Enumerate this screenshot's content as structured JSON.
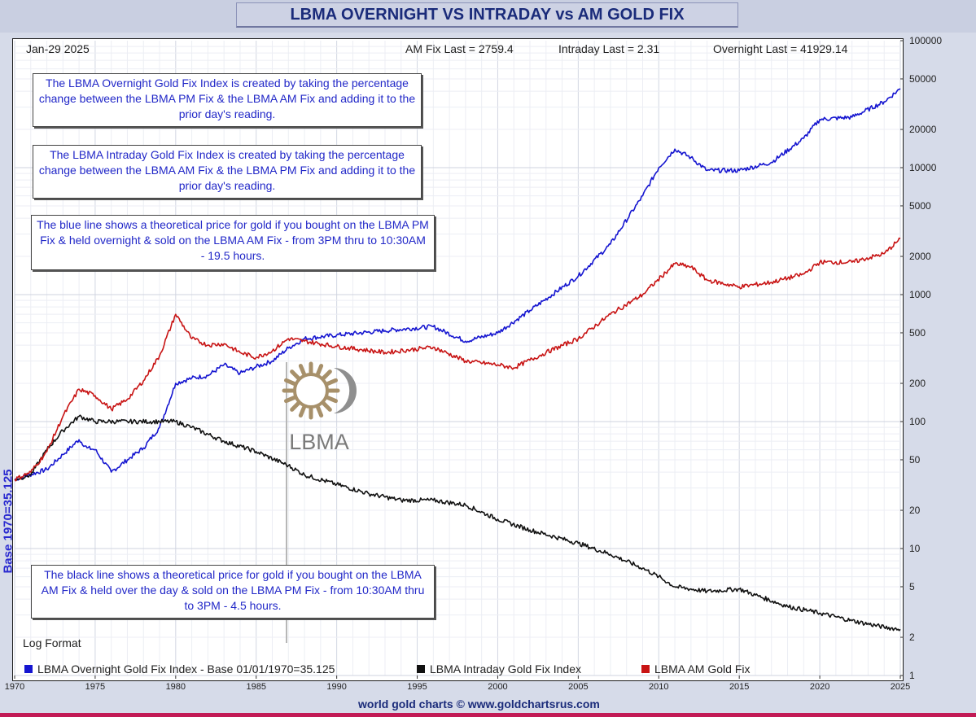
{
  "chart_data": {
    "type": "line",
    "title": "LBMA OVERNIGHT VS INTRADAY vs AM GOLD FIX",
    "date": "Jan-29  2025",
    "stats": {
      "am_fix_last": "AM Fix Last = 2759.4",
      "intraday_last": "Intraday Last = 2.31",
      "overnight_last": "Overnight Last = 41929.14"
    },
    "ylabel": "Base 1970=35.125",
    "y_scale": "log",
    "ylim": [
      1,
      100000
    ],
    "xlim": [
      1970,
      2025
    ],
    "x_ticks": [
      "1970",
      "1975",
      "1980",
      "1985",
      "1990",
      "1995",
      "2000",
      "2005",
      "2010",
      "2015",
      "2020",
      "2025"
    ],
    "y_ticks": [
      {
        "v": 100000,
        "label": "100000"
      },
      {
        "v": 50000,
        "label": "50000"
      },
      {
        "v": 20000,
        "label": "20000"
      },
      {
        "v": 10000,
        "label": "10000"
      },
      {
        "v": 5000,
        "label": "5000"
      },
      {
        "v": 2000,
        "label": "2000"
      },
      {
        "v": 1000,
        "label": "1000"
      },
      {
        "v": 500,
        "label": "500"
      },
      {
        "v": 200,
        "label": "200"
      },
      {
        "v": 100,
        "label": "100"
      },
      {
        "v": 50,
        "label": "50"
      },
      {
        "v": 20,
        "label": "20"
      },
      {
        "v": 10,
        "label": "10"
      },
      {
        "v": 5,
        "label": "5"
      },
      {
        "v": 2,
        "label": "2"
      },
      {
        "v": 1,
        "label": "1"
      }
    ],
    "series": [
      {
        "name": "LBMA Overnight Gold Fix Index - Base 01/01/1970=35.125",
        "color": "#1515d0",
        "points": [
          [
            1970,
            35
          ],
          [
            1972,
            42
          ],
          [
            1973,
            55
          ],
          [
            1974,
            72
          ],
          [
            1974.5,
            62
          ],
          [
            1975,
            60
          ],
          [
            1976,
            40
          ],
          [
            1977,
            50
          ],
          [
            1978,
            62
          ],
          [
            1979,
            90
          ],
          [
            1980,
            200
          ],
          [
            1981,
            220
          ],
          [
            1982,
            230
          ],
          [
            1983,
            280
          ],
          [
            1984,
            240
          ],
          [
            1985,
            270
          ],
          [
            1986,
            300
          ],
          [
            1987,
            380
          ],
          [
            1988,
            450
          ],
          [
            1990,
            480
          ],
          [
            1993,
            520
          ],
          [
            1996,
            560
          ],
          [
            1998,
            430
          ],
          [
            2000,
            500
          ],
          [
            2002,
            750
          ],
          [
            2005,
            1400
          ],
          [
            2007,
            2500
          ],
          [
            2009,
            6000
          ],
          [
            2010,
            10000
          ],
          [
            2011,
            14000
          ],
          [
            2012,
            12000
          ],
          [
            2013,
            9500
          ],
          [
            2015,
            9500
          ],
          [
            2017,
            11000
          ],
          [
            2019,
            17000
          ],
          [
            2020,
            24000
          ],
          [
            2022,
            25000
          ],
          [
            2024,
            33000
          ],
          [
            2025,
            41929
          ]
        ]
      },
      {
        "name": "LBMA Intraday Gold Fix Index",
        "color": "#111111",
        "points": [
          [
            1970,
            35
          ],
          [
            1971,
            38
          ],
          [
            1972,
            60
          ],
          [
            1973,
            85
          ],
          [
            1974,
            110
          ],
          [
            1975,
            100
          ],
          [
            1977,
            100
          ],
          [
            1979,
            100
          ],
          [
            1980,
            100
          ],
          [
            1981,
            90
          ],
          [
            1983,
            70
          ],
          [
            1985,
            58
          ],
          [
            1987,
            45
          ],
          [
            1988,
            38
          ],
          [
            1990,
            32
          ],
          [
            1992,
            27
          ],
          [
            1994,
            24
          ],
          [
            1996,
            24
          ],
          [
            1998,
            22
          ],
          [
            2000,
            17
          ],
          [
            2002,
            14
          ],
          [
            2005,
            11
          ],
          [
            2007,
            9
          ],
          [
            2009,
            7
          ],
          [
            2010,
            6
          ],
          [
            2011,
            5
          ],
          [
            2013,
            4.6
          ],
          [
            2015,
            4.8
          ],
          [
            2016,
            4.3
          ],
          [
            2018,
            3.5
          ],
          [
            2020,
            3.1
          ],
          [
            2022,
            2.7
          ],
          [
            2024,
            2.4
          ],
          [
            2025,
            2.31
          ]
        ]
      },
      {
        "name": "LBMA AM Gold Fix",
        "color": "#c81414",
        "points": [
          [
            1970,
            35
          ],
          [
            1971,
            40
          ],
          [
            1972,
            58
          ],
          [
            1973,
            110
          ],
          [
            1974,
            180
          ],
          [
            1975,
            160
          ],
          [
            1976,
            125
          ],
          [
            1977,
            150
          ],
          [
            1978,
            210
          ],
          [
            1979,
            330
          ],
          [
            1980,
            700
          ],
          [
            1981,
            450
          ],
          [
            1982,
            400
          ],
          [
            1983,
            410
          ],
          [
            1984,
            350
          ],
          [
            1985,
            320
          ],
          [
            1986,
            360
          ],
          [
            1987,
            450
          ],
          [
            1988,
            430
          ],
          [
            1990,
            390
          ],
          [
            1993,
            350
          ],
          [
            1996,
            385
          ],
          [
            1998,
            300
          ],
          [
            2000,
            280
          ],
          [
            2001,
            265
          ],
          [
            2003,
            350
          ],
          [
            2005,
            450
          ],
          [
            2007,
            700
          ],
          [
            2009,
            1000
          ],
          [
            2011,
            1750
          ],
          [
            2012,
            1650
          ],
          [
            2013,
            1300
          ],
          [
            2015,
            1150
          ],
          [
            2017,
            1250
          ],
          [
            2019,
            1450
          ],
          [
            2020,
            1800
          ],
          [
            2022,
            1800
          ],
          [
            2024,
            2100
          ],
          [
            2025,
            2759
          ]
        ]
      }
    ]
  },
  "notes": {
    "overnight_def": "The LBMA Overnight Gold Fix Index is created by taking the percentage change between the LBMA PM Fix & the LBMA AM Fix and adding it to the prior day's reading.",
    "intraday_def": "The LBMA Intraday Gold Fix Index is created by taking the percentage change between the LBMA AM Fix & the LBMA PM Fix and adding it to the prior day's reading.",
    "blue_line": "The blue line shows a theoretical price for gold if you bought on the LBMA PM Fix & held overnight & sold on the LBMA AM Fix - from 3PM thru to 10:30AM - 19.5 hours.",
    "black_line": "The black line shows a theoretical price for gold if you bought on the LBMA AM Fix & held over the day & sold on the LBMA PM Fix - from 10:30AM thru to 3PM - 4.5 hours."
  },
  "log_format": "Log Format",
  "logo_text": "LBMA",
  "footer": "world gold charts © www.goldchartsrus.com",
  "colors": {
    "panel_bg": "#ffffff",
    "frame_bg": "#d6dbe9",
    "title_color": "#1a2b7a",
    "note_text": "#2228c8"
  }
}
